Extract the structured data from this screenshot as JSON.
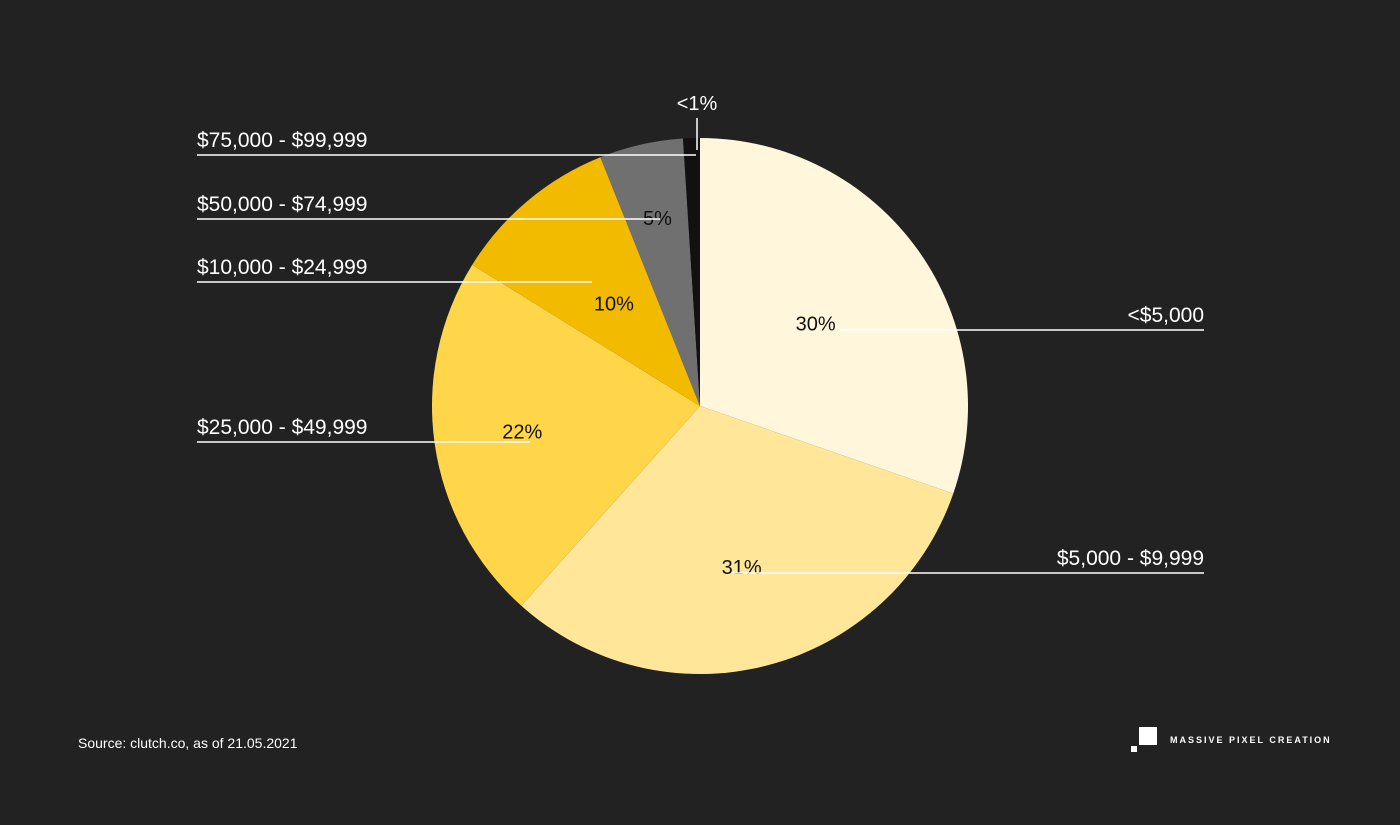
{
  "colors": {
    "background": "#222222",
    "text": "#ffffff",
    "leader_line": "#ffffff"
  },
  "chart_data": {
    "type": "pie",
    "start_angle": "12 o'clock",
    "direction": "clockwise",
    "slices": [
      {
        "category": "<$5,000",
        "value": 30,
        "label": "30%",
        "color": "#FFF6DC",
        "label_dark": true
      },
      {
        "category": "$5,000 - $9,999",
        "value": 31,
        "label": "31%",
        "color": "#FFE699",
        "label_dark": true
      },
      {
        "category": "$25,000 - $49,999",
        "value": 22,
        "label": "22%",
        "color": "#FFD54A",
        "label_dark": true
      },
      {
        "category": "$10,000 - $24,999",
        "value": 10,
        "label": "10%",
        "color": "#F2BB00",
        "label_dark": true
      },
      {
        "category": "$50,000 - $74,999",
        "value": 5,
        "label": "5%",
        "color": "#707070",
        "label_dark": true
      },
      {
        "category": "$75,000 - $99,999",
        "value": 1,
        "label": "<1%",
        "color": "#111111",
        "label_dark": false
      }
    ]
  },
  "footer": {
    "source": "Source: clutch.co, as of 21.05.2021",
    "brand": "MASSIVE PIXEL CREATION"
  }
}
